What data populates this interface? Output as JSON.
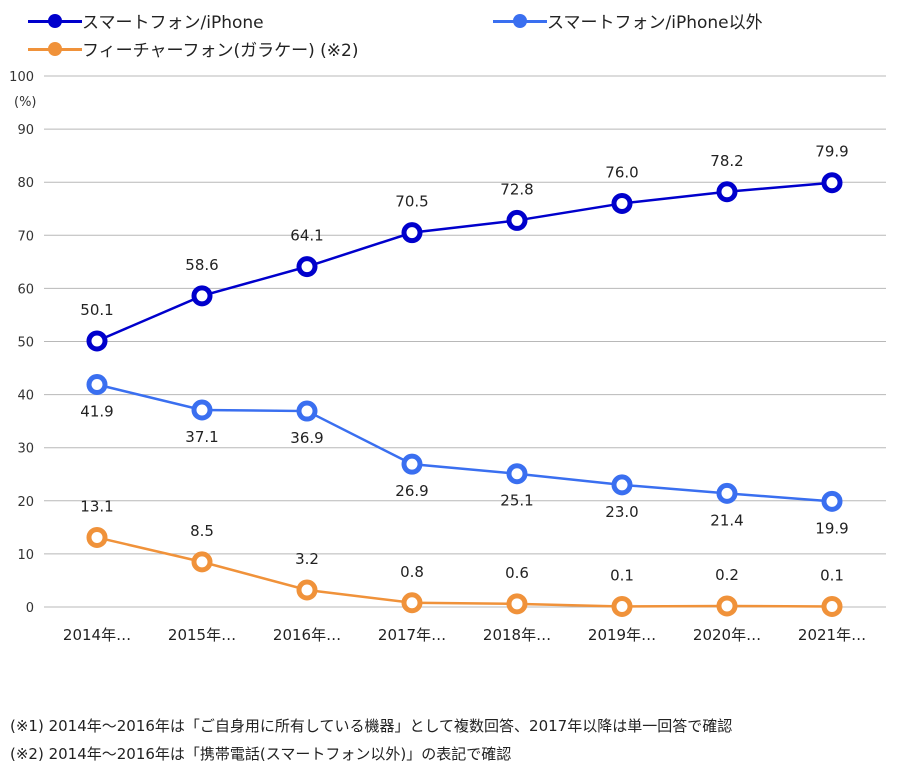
{
  "chart_data": {
    "type": "line",
    "categories": [
      "2014年…",
      "2015年…",
      "2016年…",
      "2017年…",
      "2018年…",
      "2019年…",
      "2020年…",
      "2021年…"
    ],
    "series": [
      {
        "name": "スマートフォン/iPhone",
        "color": "#0000cc",
        "values": [
          50.1,
          58.6,
          64.1,
          70.5,
          72.8,
          76.0,
          78.2,
          79.9
        ],
        "labels": [
          "50.1",
          "58.6",
          "64.1",
          "70.5",
          "72.8",
          "76.0",
          "78.2",
          "79.9"
        ],
        "label_position": "above"
      },
      {
        "name": "スマートフォン/iPhone以外",
        "color": "#3a6ff0",
        "values": [
          41.9,
          37.1,
          36.9,
          26.9,
          25.1,
          23.0,
          21.4,
          19.9
        ],
        "labels": [
          "41.9",
          "37.1",
          "36.9",
          "26.9",
          "25.1",
          "23.0",
          "21.4",
          "19.9"
        ],
        "label_position": "below"
      },
      {
        "name": "フィーチャーフォン(ガラケー) (※2)",
        "color": "#f0923a",
        "values": [
          13.1,
          8.5,
          3.2,
          0.8,
          0.6,
          0.1,
          0.2,
          0.1
        ],
        "labels": [
          "13.1",
          "8.5",
          "3.2",
          "0.8",
          "0.6",
          "0.1",
          "0.2",
          "0.1"
        ],
        "label_position": "above"
      }
    ],
    "ylim": [
      0,
      100
    ],
    "yticks": [
      "0",
      "10",
      "20",
      "30",
      "40",
      "50",
      "60",
      "70",
      "80",
      "90",
      "100"
    ],
    "yunit": "(%)",
    "grid": true,
    "legend": "top"
  },
  "notes": [
    "(※1) 2014年～2016年は「ご自身用に所有している機器」として複数回答、2017年以降は単一回答で確認",
    "(※2) 2014年～2016年は「携帯電話(スマートフォン以外)」の表記で確認"
  ]
}
